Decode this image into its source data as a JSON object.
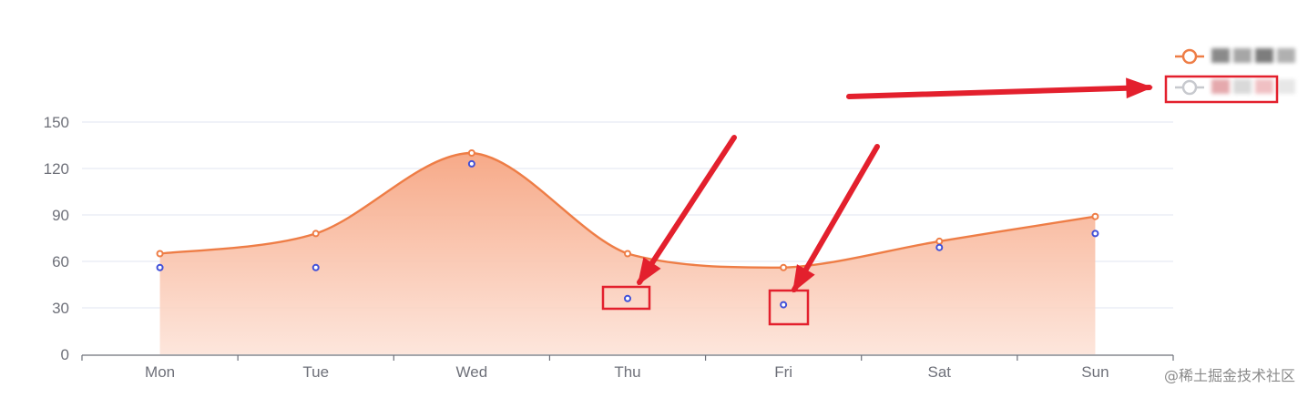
{
  "chart_data": {
    "type": "line",
    "categories": [
      "Mon",
      "Tue",
      "Wed",
      "Thu",
      "Fri",
      "Sat",
      "Sun"
    ],
    "y_ticks": [
      "0",
      "30",
      "60",
      "90",
      "120",
      "150"
    ],
    "ylim": [
      0,
      150
    ],
    "grid": true,
    "legend_position": "top-right",
    "series": [
      {
        "name": "",
        "style": "smooth-area",
        "color": "#ee7d46",
        "values": [
          65,
          78,
          130,
          65,
          56,
          73,
          89
        ]
      },
      {
        "name": "",
        "style": "points-only",
        "color": "#4050d8",
        "values": [
          56,
          56,
          123,
          36,
          32,
          69,
          78
        ]
      }
    ],
    "annotation_color": "#e3202d"
  },
  "watermark": "@稀土掘金技术社区"
}
